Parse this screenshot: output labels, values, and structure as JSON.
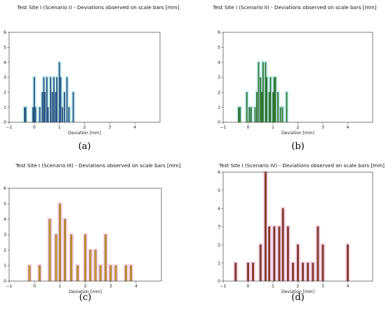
{
  "chart_data": [
    {
      "type": "bar",
      "title": "Test Site I (Scenario I) - Deviations observed on scale bars [mm]",
      "xlabel": "Deviation [mm]",
      "ylabel": "",
      "caption": "(a)",
      "xlim": [
        -1,
        5
      ],
      "ylim": [
        0,
        6
      ],
      "xticks": [
        -1,
        0,
        1,
        2,
        3,
        4
      ],
      "yticks": [
        0,
        1,
        2,
        3,
        4,
        5,
        6
      ],
      "bar_color": "#2a63a1",
      "halo_color": "#c9f2f4",
      "bar_width": 0.045,
      "x": [
        -0.38,
        -0.34,
        -0.05,
        0.0,
        0.05,
        0.22,
        0.32,
        0.38,
        0.42,
        0.5,
        0.55,
        0.65,
        0.72,
        0.78,
        0.85,
        0.9,
        1.0,
        1.05,
        1.12,
        1.2,
        1.3,
        1.38,
        1.55
      ],
      "values": [
        1,
        1,
        1,
        3,
        1,
        1,
        2,
        3,
        2,
        3,
        1,
        3,
        2,
        3,
        2,
        3,
        4,
        3,
        1,
        2,
        3,
        1,
        2
      ]
    },
    {
      "type": "bar",
      "title": "Test Site I (Scenario II) - Deviations observed on scale bars [mm]",
      "xlabel": "Deviation [mm]",
      "ylabel": "",
      "caption": "(b)",
      "xlim": [
        -1,
        5
      ],
      "ylim": [
        0,
        6
      ],
      "xticks": [
        -1,
        0,
        1,
        2,
        3,
        4
      ],
      "yticks": [
        0,
        1,
        2,
        3,
        4,
        5,
        6
      ],
      "bar_color": "#2e8b2e",
      "halo_color": "#c9f2f4",
      "bar_width": 0.045,
      "x": [
        -0.38,
        -0.32,
        -0.05,
        0.05,
        0.12,
        0.28,
        0.35,
        0.42,
        0.5,
        0.55,
        0.6,
        0.7,
        0.75,
        0.85,
        0.9,
        1.0,
        1.05,
        1.1,
        1.2,
        1.3,
        1.38,
        1.55
      ],
      "values": [
        1,
        1,
        2,
        1,
        1,
        1,
        2,
        4,
        3,
        2,
        4,
        4,
        3,
        2,
        3,
        2,
        3,
        3,
        2,
        1,
        1,
        2
      ]
    },
    {
      "type": "bar",
      "title": "Test Site I (Scenario III) - Deviations observed on scale bars [mm]",
      "xlabel": "Deviation [mm]",
      "ylabel": "",
      "caption": "(c)",
      "xlim": [
        -1,
        5
      ],
      "ylim": [
        0,
        6
      ],
      "xticks": [
        -1,
        0,
        1,
        2,
        3,
        4
      ],
      "yticks": [
        0,
        1,
        2,
        3,
        4,
        5,
        6
      ],
      "bar_color": "#c89a2a",
      "halo_color": "#f8cfe3",
      "bar_width": 0.07,
      "x": [
        -0.2,
        0.2,
        0.6,
        0.85,
        1.0,
        1.2,
        1.45,
        1.7,
        2.0,
        2.2,
        2.4,
        2.6,
        2.8,
        3.0,
        3.2,
        3.6,
        3.8
      ],
      "values": [
        1,
        1,
        4,
        3,
        5,
        4,
        3,
        1,
        3,
        2,
        2,
        1,
        3,
        1,
        1,
        1,
        1
      ]
    },
    {
      "type": "bar",
      "title": "Test Site I (Scenario IV) - Deviations observed on scale bars [mm]",
      "xlabel": "Deviation [mm]",
      "ylabel": "",
      "caption": "(d)",
      "xlim": [
        -1,
        5
      ],
      "ylim": [
        0,
        6
      ],
      "xticks": [
        -1,
        0,
        1,
        2,
        3,
        4
      ],
      "yticks": [
        0,
        1,
        2,
        3,
        4,
        5,
        6
      ],
      "bar_color": "#8b3a2a",
      "halo_color": "#f8cfe3",
      "bar_width": 0.07,
      "x": [
        -0.5,
        0.0,
        0.2,
        0.5,
        0.7,
        0.85,
        1.05,
        1.25,
        1.4,
        1.6,
        1.8,
        2.0,
        2.2,
        2.4,
        2.6,
        2.8,
        3.0,
        4.0
      ],
      "values": [
        1,
        1,
        1,
        2,
        6,
        3,
        3,
        3,
        4,
        3,
        1,
        2,
        1,
        1,
        1,
        3,
        2,
        2
      ]
    }
  ]
}
